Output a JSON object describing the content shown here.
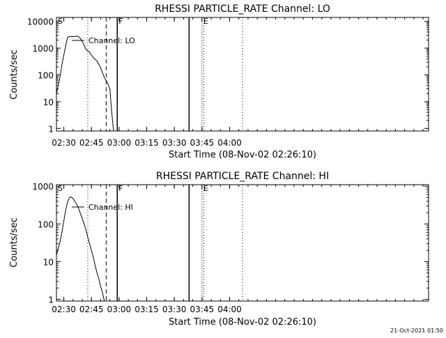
{
  "timestamp": "21-Oct-2021 01:50",
  "chart_data": [
    {
      "type": "line",
      "title": "RHESSI PARTICLE_RATE Channel: LO",
      "xlabel": "Start Time (08-Nov-02 02:26:10)",
      "ylabel": "Counts/sec",
      "yscale": "log",
      "xlim_minutes_after_0226": [
        0,
        202
      ],
      "ylim": [
        0.8,
        14000
      ],
      "x_ticks": [
        "02:30",
        "02:45",
        "03:00",
        "03:15",
        "03:30",
        "03:45",
        "04:00"
      ],
      "y_ticks": [
        "1",
        "10",
        "100",
        "1000",
        "10000"
      ],
      "legend": "Channel: LO",
      "markers": [
        {
          "label": "S",
          "time": "02:26"
        },
        {
          "label": "F",
          "time": "02:59"
        },
        {
          "label": "E",
          "time": "03:45"
        }
      ],
      "series": [
        {
          "name": "Channel: LO",
          "x": [
            "02:26",
            "02:27",
            "02:28",
            "02:29",
            "02:31",
            "02:32",
            "02:33",
            "02:34",
            "02:35",
            "02:36",
            "02:37",
            "02:38",
            "02:39",
            "02:40",
            "02:41",
            "02:42",
            "02:43",
            "02:44",
            "02:45",
            "02:46",
            "02:47",
            "02:48",
            "02:49",
            "02:50",
            "02:51",
            "02:52",
            "02:53",
            "02:54",
            "02:55",
            "02:56",
            "02:57"
          ],
          "values": [
            20,
            40,
            90,
            250,
            1200,
            2500,
            2700,
            2750,
            2700,
            2750,
            2800,
            2700,
            2300,
            1800,
            1300,
            900,
            800,
            700,
            550,
            450,
            380,
            330,
            250,
            180,
            120,
            80,
            60,
            45,
            30,
            4,
            0.8
          ]
        }
      ]
    },
    {
      "type": "line",
      "title": "RHESSI PARTICLE_RATE Channel: HI",
      "xlabel": "Start Time (08-Nov-02 02:26:10)",
      "ylabel": "Counts/sec",
      "yscale": "log",
      "xlim_minutes_after_0226": [
        0,
        202
      ],
      "ylim": [
        0.9,
        1100
      ],
      "x_ticks": [
        "02:30",
        "02:45",
        "03:00",
        "03:15",
        "03:30",
        "03:45",
        "04:00"
      ],
      "y_ticks": [
        "1",
        "10",
        "100",
        "1000"
      ],
      "legend": "Channel: HI",
      "markers": [
        {
          "label": "S",
          "time": "02:26"
        },
        {
          "label": "F",
          "time": "02:59"
        },
        {
          "label": "E",
          "time": "03:45"
        }
      ],
      "series": [
        {
          "name": "Channel: HI",
          "x": [
            "02:26",
            "02:28",
            "02:29",
            "02:30",
            "02:31",
            "02:32",
            "02:33",
            "02:34",
            "02:35",
            "02:36",
            "02:37",
            "02:38",
            "02:39",
            "02:40",
            "02:41",
            "02:42",
            "02:43",
            "02:44",
            "02:45",
            "02:46",
            "02:47",
            "02:48",
            "02:49",
            "02:50",
            "02:51",
            "02:52"
          ],
          "values": [
            15,
            35,
            60,
            120,
            230,
            380,
            500,
            520,
            470,
            400,
            330,
            260,
            190,
            140,
            100,
            70,
            45,
            30,
            20,
            13,
            8,
            5,
            3.5,
            2.2,
            1.5,
            0.9
          ]
        }
      ]
    }
  ]
}
